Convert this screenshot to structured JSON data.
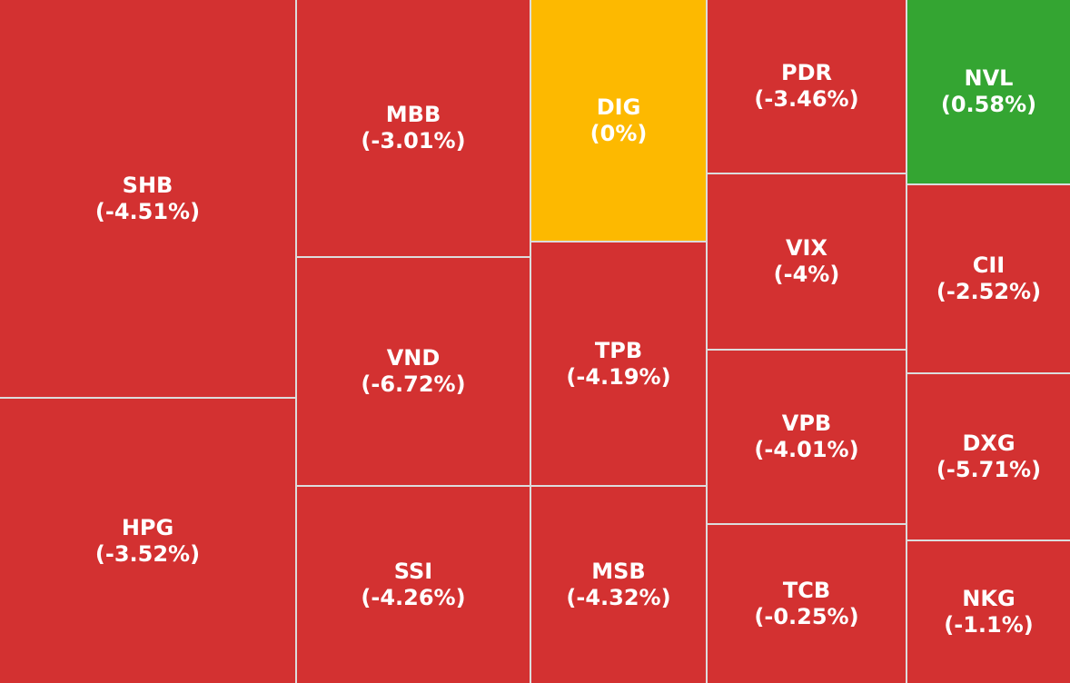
{
  "tiles": [
    {
      "label": "SHB",
      "change": -4.51,
      "change_label": "(-4.51%)"
    },
    {
      "label": "HPG",
      "change": -3.52,
      "change_label": "(-3.52%)"
    },
    {
      "label": "MBB",
      "change": -3.01,
      "change_label": "(-3.01%)"
    },
    {
      "label": "VND",
      "change": -6.72,
      "change_label": "(-6.72%)"
    },
    {
      "label": "SSI",
      "change": -4.26,
      "change_label": "(-4.26%)"
    },
    {
      "label": "DIG",
      "change": 0,
      "change_label": "(0%)"
    },
    {
      "label": "TPB",
      "change": -4.19,
      "change_label": "(-4.19%)"
    },
    {
      "label": "MSB",
      "change": -4.32,
      "change_label": "(-4.32%)"
    },
    {
      "label": "PDR",
      "change": -3.46,
      "change_label": "(-3.46%)"
    },
    {
      "label": "VIX",
      "change": -4,
      "change_label": "(-4%)"
    },
    {
      "label": "VPB",
      "change": -4.01,
      "change_label": "(-4.01%)"
    },
    {
      "label": "TCB",
      "change": -0.25,
      "change_label": "(-0.25%)"
    },
    {
      "label": "NVL",
      "change": 0.58,
      "change_label": "(0.58%)"
    },
    {
      "label": "CII",
      "change": -2.52,
      "change_label": "(-2.52%)"
    },
    {
      "label": "DXG",
      "change": -5.71,
      "change_label": "(-5.71%)"
    },
    {
      "label": "NKG",
      "change": -1.1,
      "change_label": "(-1.1%)"
    }
  ]
}
